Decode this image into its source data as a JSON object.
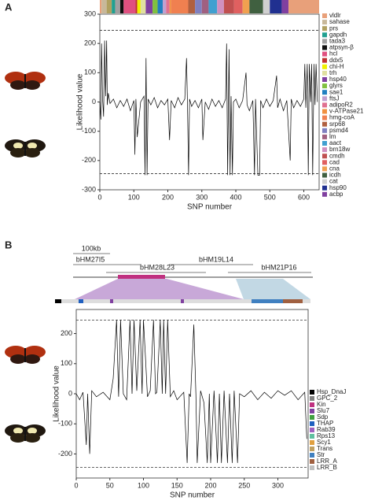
{
  "chart_data": [
    {
      "type": "line",
      "panel": "A",
      "xlabel": "SNP number",
      "ylabel": "Likelihood value",
      "color": "#000000",
      "xlim": [
        0,
        645
      ],
      "xticks": [
        0,
        100,
        200,
        300,
        400,
        500,
        600
      ],
      "ylim": [
        -300,
        300
      ],
      "yticks": [
        -300,
        -200,
        -100,
        0,
        100,
        200,
        300
      ],
      "hlines": [
        245,
        -245
      ],
      "x": [
        0,
        3,
        5,
        8,
        11,
        14,
        17,
        20,
        22,
        25,
        30,
        40,
        50,
        60,
        70,
        80,
        90,
        100,
        103,
        106,
        110,
        120,
        130,
        133,
        136,
        139,
        142,
        150,
        160,
        170,
        180,
        190,
        200,
        205,
        210,
        220,
        230,
        240,
        250,
        255,
        258,
        261,
        264,
        270,
        280,
        290,
        300,
        303,
        310,
        320,
        330,
        340,
        350,
        360,
        370,
        373,
        376,
        380,
        383,
        386,
        390,
        393,
        400,
        410,
        420,
        430,
        433,
        440,
        450,
        455,
        458,
        465,
        470,
        473,
        480,
        490,
        500,
        510,
        520,
        523,
        530,
        540,
        550,
        560,
        563,
        570,
        580,
        590,
        600,
        603,
        606,
        610,
        613,
        616,
        620,
        623,
        626,
        630,
        633,
        636,
        640
      ],
      "values": [
        0,
        -60,
        200,
        10,
        -50,
        210,
        20,
        210,
        -10,
        30,
        -5,
        10,
        -20,
        5,
        -15,
        10,
        -30,
        5,
        -180,
        10,
        -120,
        0,
        20,
        -250,
        150,
        -250,
        10,
        -10,
        15,
        -20,
        5,
        -10,
        10,
        -130,
        5,
        -20,
        15,
        -10,
        10,
        150,
        -20,
        -250,
        10,
        -15,
        5,
        -20,
        10,
        -130,
        0,
        -25,
        10,
        -15,
        5,
        -20,
        10,
        200,
        -250,
        180,
        -250,
        20,
        -250,
        0,
        10,
        -20,
        5,
        100,
        -10,
        -30,
        5,
        -250,
        10,
        -250,
        -250,
        5,
        -20,
        10,
        -15,
        5,
        90,
        -20,
        10,
        -30,
        5,
        -200,
        10,
        -20,
        5,
        -15,
        10,
        130,
        -20,
        130,
        -250,
        130,
        0,
        130,
        -250,
        130,
        -10,
        130,
        0
      ],
      "strip_bounds": [
        0,
        5,
        20,
        35,
        45,
        60,
        70,
        105,
        110,
        120,
        135,
        155,
        170,
        185,
        195,
        205,
        210,
        260,
        280,
        300,
        320,
        345,
        365,
        395,
        420,
        440,
        480,
        500,
        535,
        555
      ],
      "genes": [
        {
          "name": "vldlr",
          "color": "#e8a07a"
        },
        {
          "name": "sahase",
          "color": "#c8b89a"
        },
        {
          "name": "prs",
          "color": "#b0a060"
        },
        {
          "name": "gapdh",
          "color": "#20a090"
        },
        {
          "name": "tada3",
          "color": "#a0a0a0"
        },
        {
          "name": "atpsyn-β",
          "color": "#101010"
        },
        {
          "name": "hcl",
          "color": "#e05080"
        },
        {
          "name": "ddx5",
          "color": "#c03030"
        },
        {
          "name": "chi-H",
          "color": "#f0f000"
        },
        {
          "name": "trh",
          "color": "#e0e0a0"
        },
        {
          "name": "hsp40",
          "color": "#8040a0"
        },
        {
          "name": "glyrs",
          "color": "#80c040"
        },
        {
          "name": "sae1",
          "color": "#2080c0"
        },
        {
          "name": "ftsJ",
          "color": "#c0a0d0"
        },
        {
          "name": "adipoR2",
          "color": "#e07090"
        },
        {
          "name": "v-ATPase21",
          "color": "#f09040"
        },
        {
          "name": "hmg-coA",
          "color": "#f08050"
        },
        {
          "name": "srp68",
          "color": "#b06040"
        },
        {
          "name": "psmd4",
          "color": "#8080c0"
        },
        {
          "name": "lm",
          "color": "#a06080"
        },
        {
          "name": "aact",
          "color": "#40a0d0"
        },
        {
          "name": "brn18w",
          "color": "#d090c0"
        },
        {
          "name": "cmdh",
          "color": "#c05050"
        },
        {
          "name": "cad",
          "color": "#e06060"
        },
        {
          "name": "cna",
          "color": "#f0a050"
        },
        {
          "name": "icdh",
          "color": "#406040"
        },
        {
          "name": "cat",
          "color": "#d0d0d0"
        },
        {
          "name": "hsp90",
          "color": "#203090"
        },
        {
          "name": "acbp",
          "color": "#8040a0"
        }
      ]
    },
    {
      "type": "line",
      "panel": "B",
      "xlabel": "SNP number",
      "ylabel": "Likelihood value",
      "color": "#000000",
      "xlim": [
        0,
        345
      ],
      "xticks": [
        0,
        50,
        100,
        150,
        200,
        250,
        300
      ],
      "ylim": [
        -280,
        280
      ],
      "yticks": [
        -200,
        -100,
        0,
        100,
        200
      ],
      "hlines": [
        245,
        -245
      ],
      "x": [
        0,
        5,
        10,
        15,
        17,
        20,
        23,
        30,
        40,
        50,
        55,
        60,
        63,
        66,
        70,
        75,
        80,
        83,
        86,
        90,
        95,
        98,
        100,
        103,
        106,
        110,
        115,
        118,
        120,
        125,
        128,
        130,
        133,
        136,
        140,
        145,
        150,
        160,
        165,
        168,
        170,
        175,
        178,
        180,
        185,
        190,
        195,
        198,
        200,
        205,
        210,
        213,
        216,
        220,
        225,
        228,
        232,
        235,
        240,
        243,
        250,
        260,
        270,
        280,
        290,
        300,
        310,
        320,
        330,
        340,
        343
      ],
      "values": [
        0,
        -20,
        5,
        -170,
        0,
        -200,
        10,
        -10,
        5,
        -20,
        50,
        245,
        -10,
        245,
        0,
        -20,
        245,
        0,
        245,
        10,
        245,
        0,
        245,
        120,
        -10,
        10,
        245,
        0,
        5,
        245,
        0,
        245,
        0,
        245,
        -10,
        10,
        -20,
        5,
        -230,
        0,
        -10,
        230,
        0,
        -230,
        10,
        -30,
        -230,
        0,
        -230,
        10,
        -230,
        0,
        -230,
        10,
        -230,
        0,
        -230,
        10,
        -230,
        0,
        -10,
        10,
        -20,
        5,
        -15,
        10,
        -5,
        10,
        -20,
        5,
        -150
      ],
      "scale_label": "100kb",
      "clones": [
        "bHM27I5",
        "bHM28L23",
        "bHM19L14",
        "bHM21P16"
      ],
      "genes": [
        {
          "name": "Hsp_DnaJ",
          "color": "#000000"
        },
        {
          "name": "GPC_2",
          "color": "#808080"
        },
        {
          "name": "Kin",
          "color": "#c03080"
        },
        {
          "name": "Slu7",
          "color": "#8040a0"
        },
        {
          "name": "Sdp",
          "color": "#40a040"
        },
        {
          "name": "THAP",
          "color": "#2060c0"
        },
        {
          "name": "Rab39",
          "color": "#a060c0"
        },
        {
          "name": "Rps13",
          "color": "#60c0a0"
        },
        {
          "name": "Scy1",
          "color": "#e0a040"
        },
        {
          "name": "Trans",
          "color": "#c0a060"
        },
        {
          "name": "Str",
          "color": "#4080c0"
        },
        {
          "name": "LRR_A",
          "color": "#a06040"
        },
        {
          "name": "LRR_B",
          "color": "#c0c0c0"
        }
      ]
    }
  ]
}
